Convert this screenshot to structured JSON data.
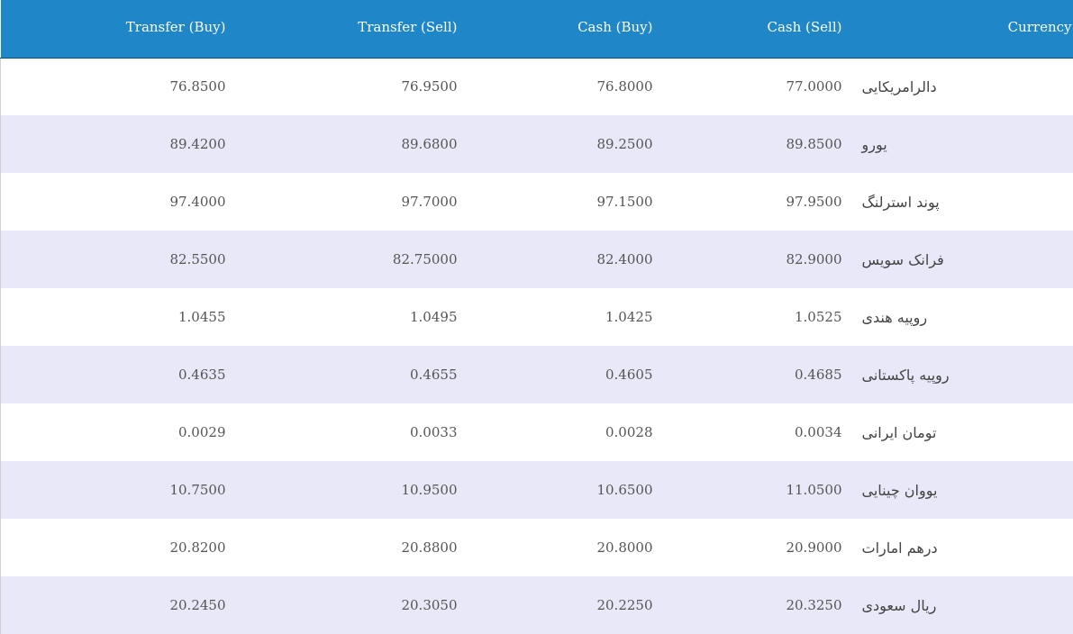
{
  "table": {
    "headers": [
      "Transfer (Buy)",
      "Transfer (Sell)",
      "Cash (Buy)",
      "Cash (Sell)",
      "Currency"
    ],
    "rows": [
      {
        "transfer_buy": "76.8500",
        "transfer_sell": "76.9500",
        "cash_buy": "76.8000",
        "cash_sell": "77.0000",
        "currency": "دالرامریکایی"
      },
      {
        "transfer_buy": "89.4200",
        "transfer_sell": "89.6800",
        "cash_buy": "89.2500",
        "cash_sell": "89.8500",
        "currency": "یورو"
      },
      {
        "transfer_buy": "97.4000",
        "transfer_sell": "97.7000",
        "cash_buy": "97.1500",
        "cash_sell": "97.9500",
        "currency": "پوند استرلنگ"
      },
      {
        "transfer_buy": "82.5500",
        "transfer_sell": "82.75000",
        "cash_buy": "82.4000",
        "cash_sell": "82.9000",
        "currency": "فرانک سویس"
      },
      {
        "transfer_buy": "1.0455",
        "transfer_sell": "1.0495",
        "cash_buy": "1.0425",
        "cash_sell": "1.0525",
        "currency": "روپیه هندی"
      },
      {
        "transfer_buy": "0.4635",
        "transfer_sell": "0.4655",
        "cash_buy": "0.4605",
        "cash_sell": "0.4685",
        "currency": "روپیه پاکستانی"
      },
      {
        "transfer_buy": "0.0029",
        "transfer_sell": "0.0033",
        "cash_buy": "0.0028",
        "cash_sell": "0.0034",
        "currency": "تومان ایرانی"
      },
      {
        "transfer_buy": "10.7500",
        "transfer_sell": "10.9500",
        "cash_buy": "10.6500",
        "cash_sell": "11.0500",
        "currency": "یووان چینایی"
      },
      {
        "transfer_buy": "20.8200",
        "transfer_sell": "20.8800",
        "cash_buy": "20.8000",
        "cash_sell": "20.9000",
        "currency": "درهم امارات"
      },
      {
        "transfer_buy": "20.2450",
        "transfer_sell": "20.3050",
        "cash_buy": "20.2250",
        "cash_sell": "20.3250",
        "currency": "ریال سعودی"
      }
    ]
  },
  "colors": {
    "header_bg": "#1f87c7",
    "row_alt_bg": "#e8e8f8",
    "row_bg": "#ffffff"
  }
}
